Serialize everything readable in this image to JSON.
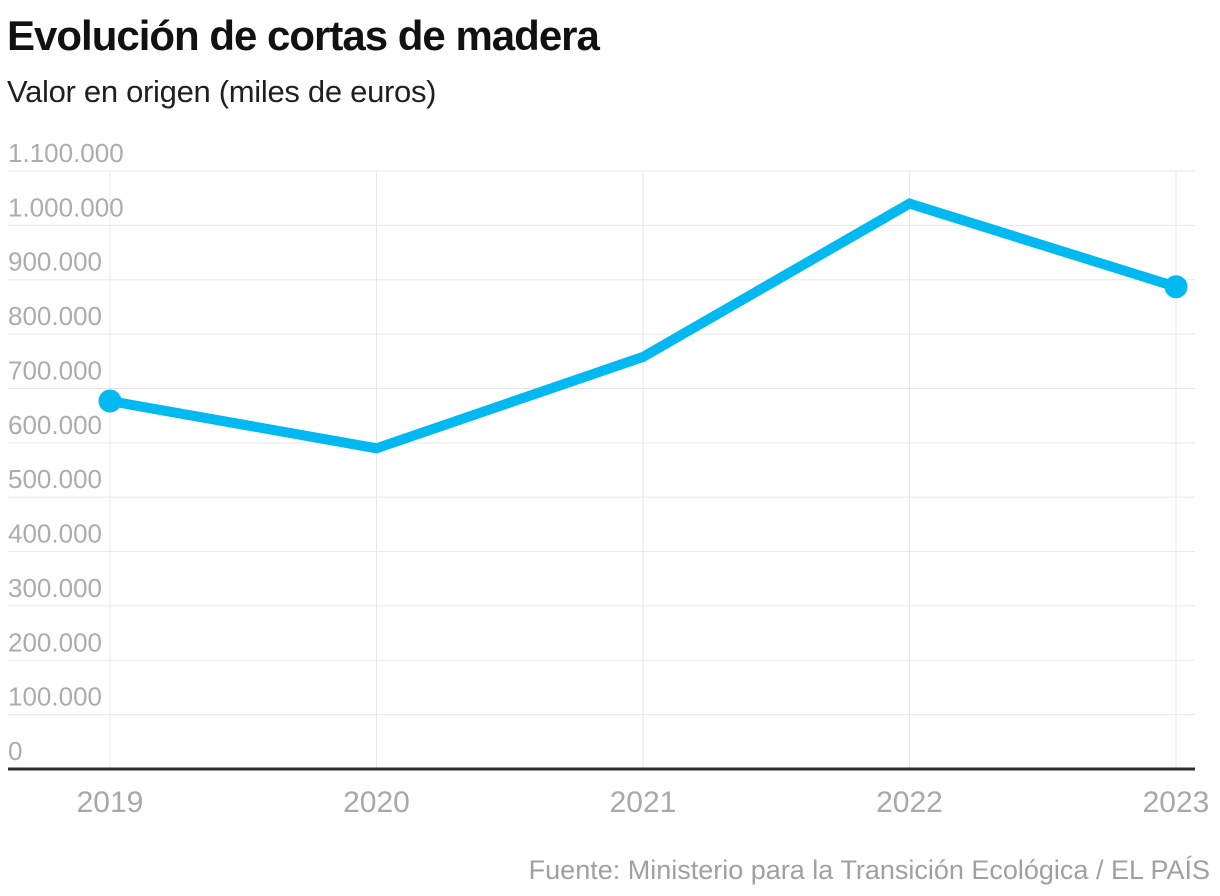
{
  "chart_data": {
    "type": "line",
    "title": "Evolución de cortas de madera",
    "subtitle": "Valor en origen (miles de euros)",
    "categories": [
      "2019",
      "2020",
      "2021",
      "2022",
      "2023"
    ],
    "series": [
      {
        "name": "Valor en origen (miles de euros)",
        "values": [
          677000,
          590000,
          758000,
          1040000,
          887000
        ]
      }
    ],
    "ylim": [
      0,
      1100000
    ],
    "ytick_step": 100000,
    "ytick_labels": [
      "0",
      "100.000",
      "200.000",
      "300.000",
      "400.000",
      "500.000",
      "600.000",
      "700.000",
      "800.000",
      "900.000",
      "1.000.000",
      "1.100.000"
    ],
    "xlabel": "",
    "ylabel": "",
    "grid": "horizontal-and-vertical",
    "legend": "none",
    "line_color": "#00b9f1",
    "grid_color": "#e7e7e7",
    "axis_color": "#2e2e2e",
    "tick_label_color": "#acacac",
    "markers_on": [
      "first",
      "last"
    ]
  },
  "footer": {
    "source": "Fuente: Ministerio para la Transición Ecológica / EL PAÍS"
  }
}
